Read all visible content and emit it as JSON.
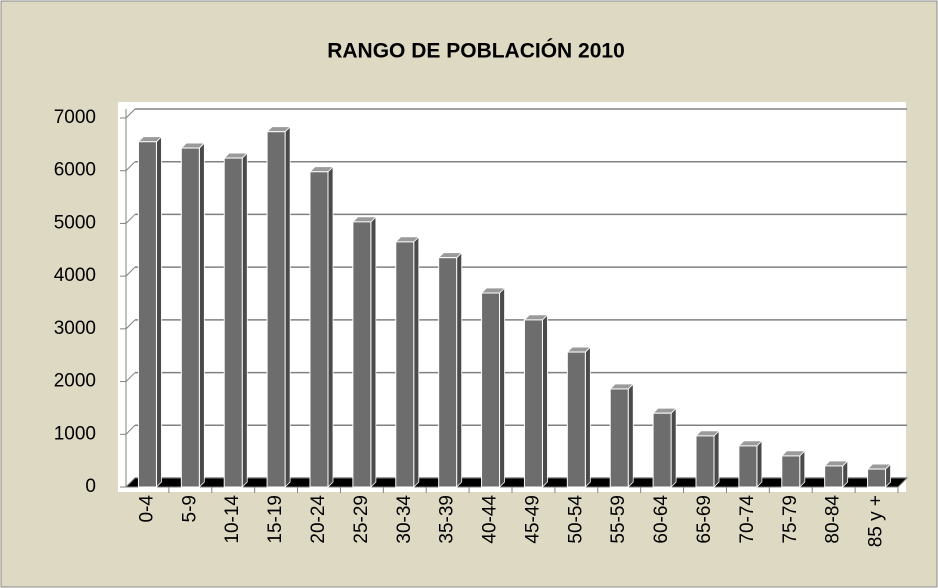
{
  "chart_data": {
    "type": "bar",
    "title": "RANGO DE POBLACIÓN 2010",
    "categories": [
      "0-4",
      "5-9",
      "10-14",
      "15-19",
      "20-24",
      "25-29",
      "30-34",
      "35-39",
      "40-44",
      "45-49",
      "50-54",
      "55-59",
      "60-64",
      "65-69",
      "70-74",
      "75-79",
      "80-84",
      "85 y +"
    ],
    "values": [
      6550,
      6430,
      6240,
      6740,
      5980,
      5030,
      4650,
      4350,
      3680,
      3170,
      2560,
      1860,
      1400,
      970,
      780,
      590,
      400,
      340
    ],
    "color": "#6d6d6d",
    "ylim": [
      0,
      7000
    ],
    "yticks": [
      0,
      1000,
      2000,
      3000,
      4000,
      5000,
      6000,
      7000
    ],
    "grid": true
  }
}
